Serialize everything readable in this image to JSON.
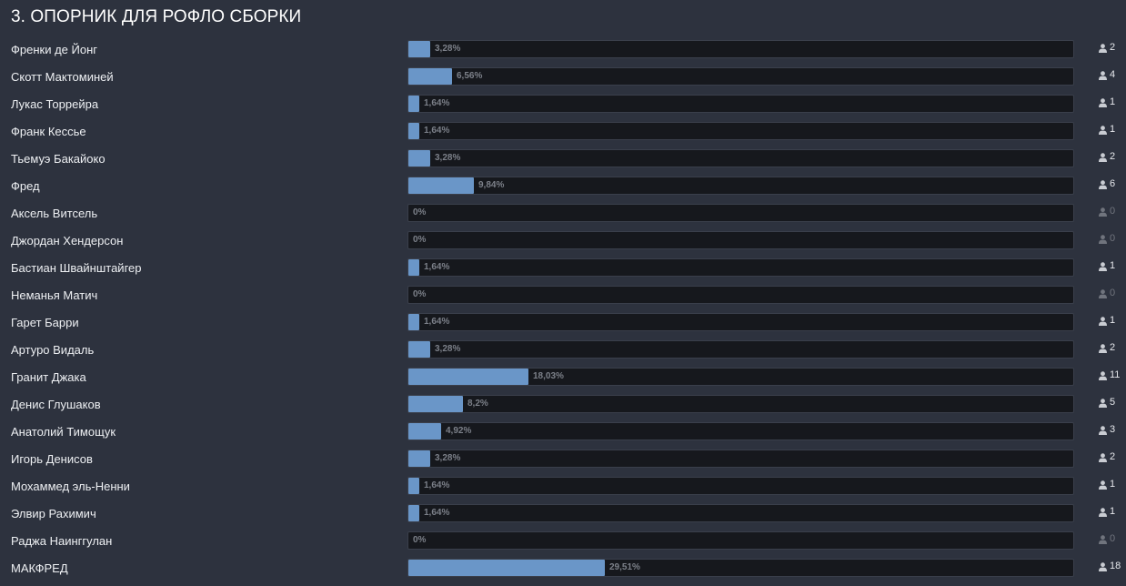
{
  "poll": {
    "title": "3. ОПОРНИК ДЛЯ РОФЛО СБОРКИ",
    "colors": {
      "background": "#2d323e",
      "bar_fill": "#6a96c8",
      "bar_track": "#16181d",
      "percent_text": "#7c8089",
      "zero_count": "#70747d"
    },
    "options": [
      {
        "label": "Френки де Йонг",
        "percent": "3,28%",
        "percent_value": 3.28,
        "votes": "2"
      },
      {
        "label": "Скотт Мактоминей",
        "percent": "6,56%",
        "percent_value": 6.56,
        "votes": "4"
      },
      {
        "label": "Лукас Торрейра",
        "percent": "1,64%",
        "percent_value": 1.64,
        "votes": "1"
      },
      {
        "label": "Франк Кессье",
        "percent": "1,64%",
        "percent_value": 1.64,
        "votes": "1"
      },
      {
        "label": "Тьемуэ Бакайоко",
        "percent": "3,28%",
        "percent_value": 3.28,
        "votes": "2"
      },
      {
        "label": "Фред",
        "percent": "9,84%",
        "percent_value": 9.84,
        "votes": "6"
      },
      {
        "label": "Аксель Витсель",
        "percent": "0%",
        "percent_value": 0,
        "votes": "0"
      },
      {
        "label": "Джордан Хендерсон",
        "percent": "0%",
        "percent_value": 0,
        "votes": "0"
      },
      {
        "label": "Бастиан Швайнштайгер",
        "percent": "1,64%",
        "percent_value": 1.64,
        "votes": "1"
      },
      {
        "label": "Неманья Матич",
        "percent": "0%",
        "percent_value": 0,
        "votes": "0"
      },
      {
        "label": "Гарет Барри",
        "percent": "1,64%",
        "percent_value": 1.64,
        "votes": "1"
      },
      {
        "label": "Артуро Видаль",
        "percent": "3,28%",
        "percent_value": 3.28,
        "votes": "2"
      },
      {
        "label": "Гранит Джака",
        "percent": "18,03%",
        "percent_value": 18.03,
        "votes": "11"
      },
      {
        "label": "Денис Глушаков",
        "percent": "8,2%",
        "percent_value": 8.2,
        "votes": "5"
      },
      {
        "label": "Анатолий Тимощук",
        "percent": "4,92%",
        "percent_value": 4.92,
        "votes": "3"
      },
      {
        "label": "Игорь Денисов",
        "percent": "3,28%",
        "percent_value": 3.28,
        "votes": "2"
      },
      {
        "label": "Мохаммед эль-Ненни",
        "percent": "1,64%",
        "percent_value": 1.64,
        "votes": "1"
      },
      {
        "label": "Элвир Рахимич",
        "percent": "1,64%",
        "percent_value": 1.64,
        "votes": "1"
      },
      {
        "label": "Раджа Наинггулан",
        "percent": "0%",
        "percent_value": 0,
        "votes": "0"
      },
      {
        "label": "МАКФРЕД",
        "percent": "29,51%",
        "percent_value": 29.51,
        "votes": "18"
      }
    ],
    "icon": "user-icon"
  }
}
